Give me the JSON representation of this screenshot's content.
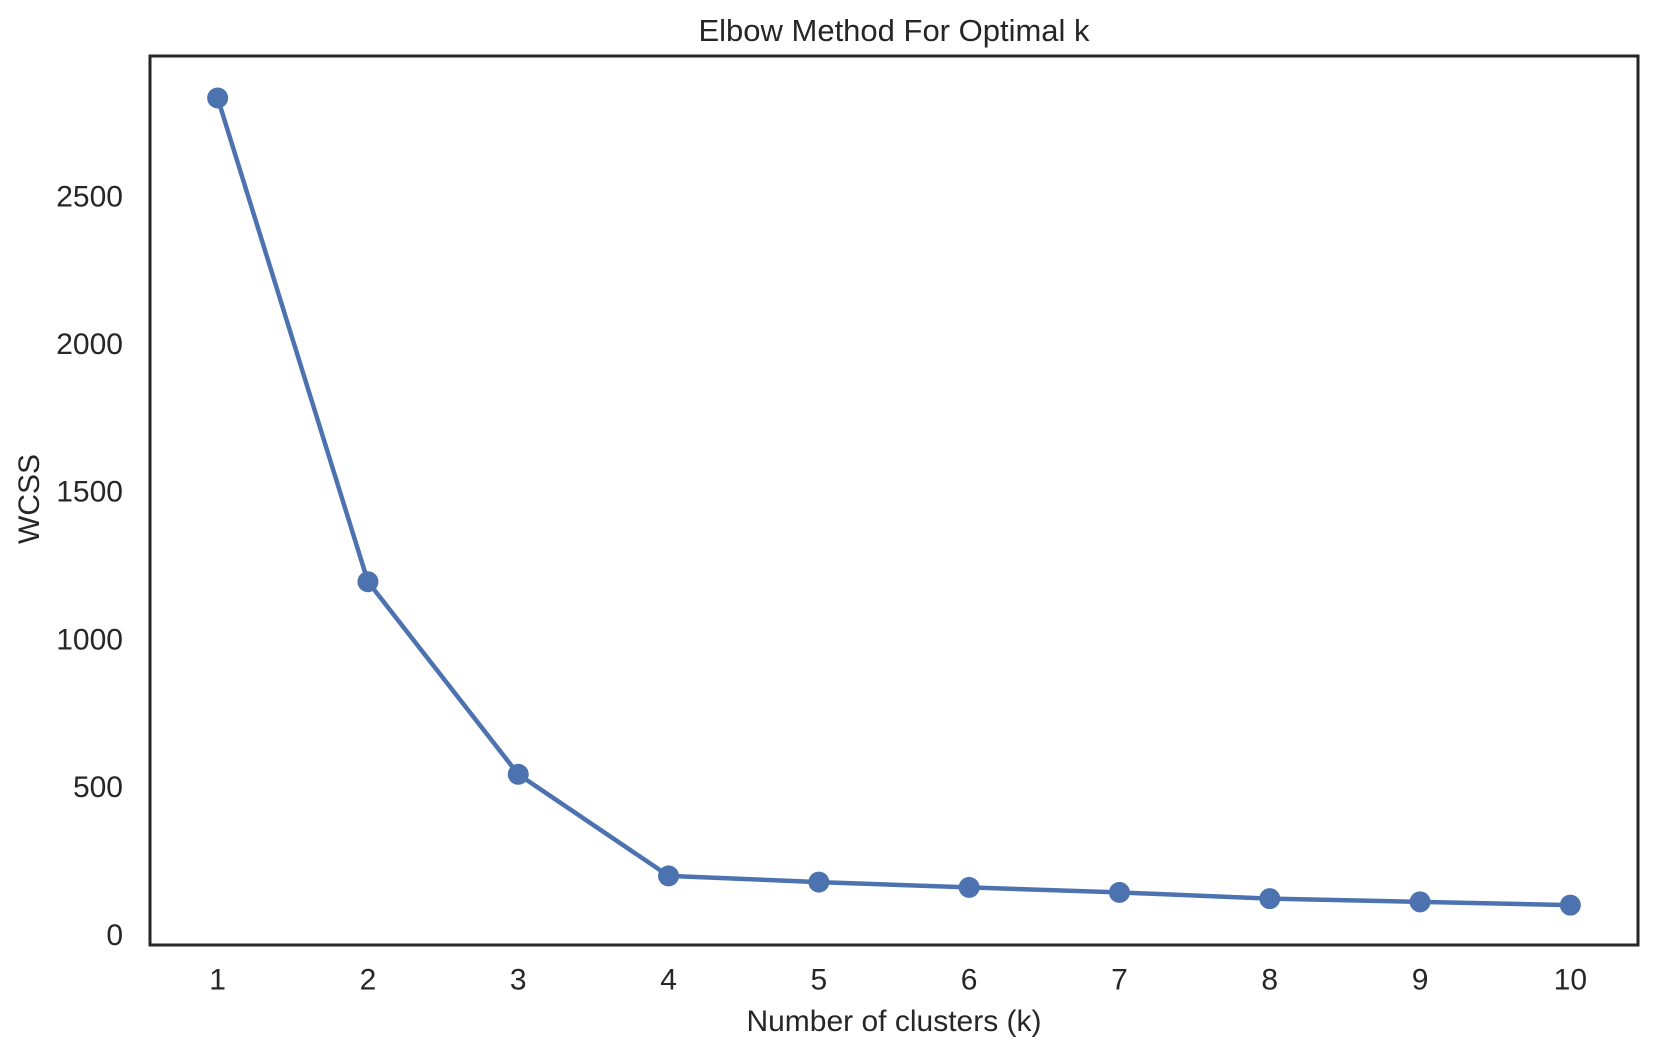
{
  "page": {
    "background_color": "#ffffff"
  },
  "chart_data": {
    "type": "line",
    "title": "Elbow Method For Optimal k",
    "xlabel": "Number of clusters (k)",
    "ylabel": "WCSS",
    "x": [
      1,
      2,
      3,
      4,
      5,
      6,
      7,
      8,
      9,
      10
    ],
    "series": [
      {
        "name": "WCSS",
        "values": [
          2835,
          1197,
          545,
          201,
          180,
          162,
          145,
          124,
          113,
          102
        ]
      }
    ],
    "xticks": [
      "1",
      "2",
      "3",
      "4",
      "5",
      "6",
      "7",
      "8",
      "9",
      "10"
    ],
    "xtick_values": [
      1,
      2,
      3,
      4,
      5,
      6,
      7,
      8,
      9,
      10
    ],
    "yticks": [
      "0",
      "500",
      "1000",
      "1500",
      "2000",
      "2500"
    ],
    "ytick_values": [
      0,
      500,
      1000,
      1500,
      2000,
      2500
    ],
    "xlim": [
      0.55,
      10.45
    ],
    "ylim": [
      -33,
      2977
    ],
    "grid": false,
    "legend": "none",
    "marker": "circle",
    "line_color": "#4C72B0",
    "marker_color": "#4C72B0",
    "spine_color": "#262626",
    "text_color": "#262626"
  }
}
